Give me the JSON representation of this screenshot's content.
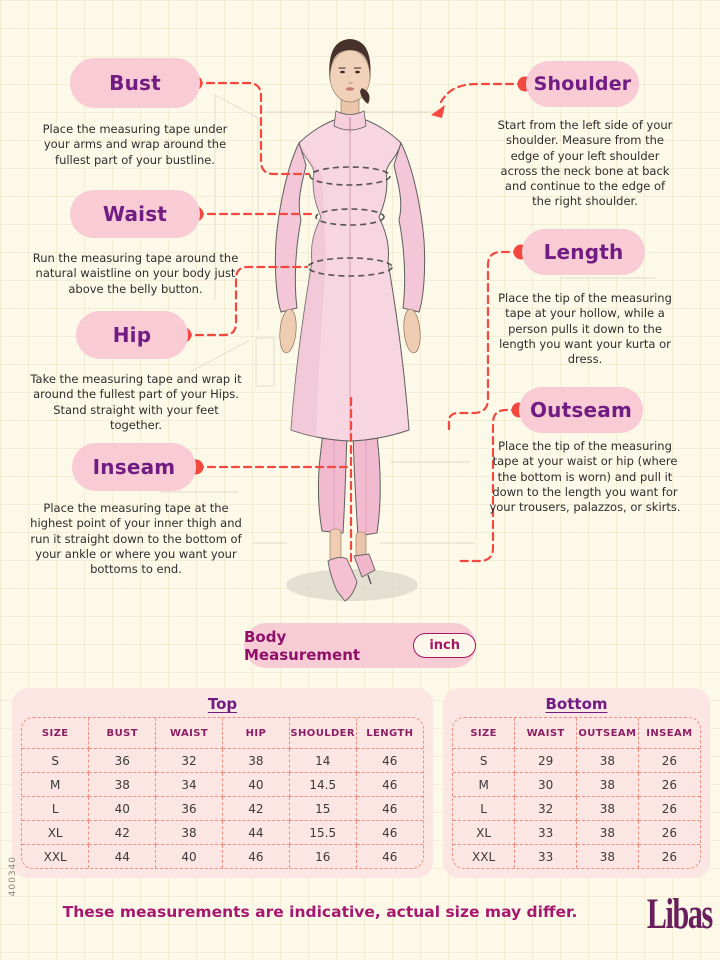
{
  "page": {
    "sku": "400340",
    "brand": "Libas",
    "section_title": "Body Measurement",
    "unit": "inch",
    "footer_note": "These measurements are indicative, actual size may differ."
  },
  "colors": {
    "background_cream": "#fcf9e9",
    "pill_pink": "#f9cbd4",
    "label_purple": "#701c82",
    "accent_red": "#f2483f",
    "table_panel_pink": "#fce6e4",
    "table_border_salmon": "#ef8f7f",
    "table_header_magenta": "#8c1f63",
    "footer_magenta": "#a6176f",
    "brand_purple": "#691f5b"
  },
  "callouts": {
    "left": [
      {
        "label": "Bust",
        "description": "Place the measuring tape under your arms and wrap around the fullest part of your bustline."
      },
      {
        "label": "Waist",
        "description": "Run the measuring tape around the natural waistline on your body just above the belly button."
      },
      {
        "label": "Hip",
        "description": "Take the measuring tape and wrap it around the fullest part of your Hips. Stand straight with your feet together."
      },
      {
        "label": "Inseam",
        "description": "Place the measuring tape at the highest point of your inner thigh and run it straight down to the bottom of your ankle or where you want your bottoms to end."
      }
    ],
    "right": [
      {
        "label": "Shoulder",
        "description": "Start from the left side of your shoulder. Measure from the edge of your left shoulder across the neck bone at back and continue to the edge of the right shoulder."
      },
      {
        "label": "Length",
        "description": "Place the tip of the measuring tape at your hollow, while a person pulls it down to the length you want your kurta or dress."
      },
      {
        "label": "Outseam",
        "description": "Place the tip of the measuring tape at your waist or hip (where the bottom is worn) and pull it down to the length you want for your trousers, palazzos, or skirts."
      }
    ]
  },
  "size_tables": [
    {
      "title": "Top",
      "columns": [
        "SIZE",
        "BUST",
        "WAIST",
        "HIP",
        "SHOULDER",
        "LENGTH"
      ],
      "rows": [
        [
          "S",
          36,
          32,
          38,
          14,
          46
        ],
        [
          "M",
          38,
          34,
          40,
          14.5,
          46
        ],
        [
          "L",
          40,
          36,
          42,
          15,
          46
        ],
        [
          "XL",
          42,
          38,
          44,
          15.5,
          46
        ],
        [
          "XXL",
          44,
          40,
          46,
          16,
          46
        ]
      ]
    },
    {
      "title": "Bottom",
      "columns": [
        "SIZE",
        "WAIST",
        "OUTSEAM",
        "INSEAM"
      ],
      "rows": [
        [
          "S",
          29,
          38,
          26
        ],
        [
          "M",
          30,
          38,
          26
        ],
        [
          "L",
          32,
          38,
          26
        ],
        [
          "XL",
          33,
          38,
          26
        ],
        [
          "XXL",
          33,
          38,
          26
        ]
      ]
    }
  ]
}
